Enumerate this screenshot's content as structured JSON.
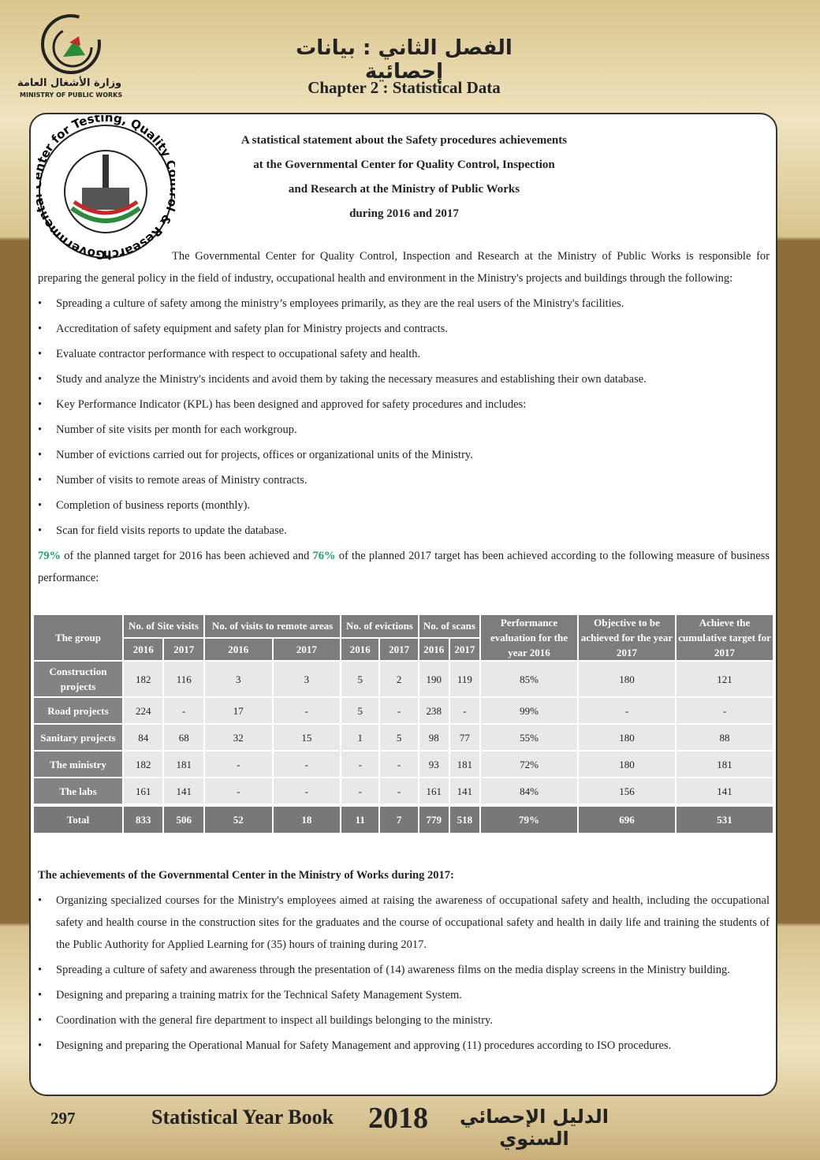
{
  "header": {
    "logo_arabic": "وزارة الأشغال العامة",
    "logo_english": "MINISTRY OF PUBLIC WORKS",
    "arabic_title": "الفصل الثاني : بيانات إحصائية",
    "chapter": "Chapter 2 : Statistical Data"
  },
  "seal": {
    "text": "Governmental Center for Testing, Quality Control & Research"
  },
  "statement": {
    "title": [
      "A statistical statement about the Safety procedures achievements",
      "at the Governmental Center for Quality Control, Inspection",
      "and Research at the Ministry of Public Works",
      "during 2016 and 2017"
    ],
    "intro": "The Governmental Center for Quality Control, Inspection and Research at the Ministry of Public Works is responsible for preparing the general policy in the field of industry, occupational health and environment in the Ministry's projects and buildings through the following:",
    "bullets": [
      "Spreading a culture of safety among the ministry’s employees primarily, as they are the real users of the Ministry's facilities.",
      "Accreditation of safety equipment and safety plan for Ministry projects and contracts.",
      "Evaluate contractor performance with respect to occupational safety and health.",
      "Study and analyze the Ministry's incidents and avoid them by taking the necessary measures and establishing their own database.",
      "Key Performance Indicator (KPL) has been designed and approved for safety procedures and includes:",
      "Number of site visits per month for each workgroup.",
      "Number of evictions carried out for projects, offices or organizational units of the Ministry.",
      "Number of visits to remote areas of Ministry contracts.",
      "Completion of business reports (monthly).",
      "Scan for field visits reports to update the database."
    ],
    "result": {
      "pct_2016": "79%",
      "text_1": "of the planned target for 2016 has been achieved and",
      "pct_2017": "76%",
      "text_2": "of the planned 2017 target has been achieved according to the following measure of business performance:"
    }
  },
  "table": {
    "header": [
      "The group",
      "No. of Site visits",
      "No. of visits to remote areas",
      "No. of evictions",
      "No. of scans",
      "Performance evaluation for the year 2016",
      "Objective to be achieved for the year 2017",
      "Achieve the cumulative target for 2017"
    ],
    "years": [
      "2016",
      "2017",
      "2016",
      "2017",
      "2016",
      "2017",
      "2016",
      "2017"
    ],
    "rows": [
      [
        "Construction projects",
        "182",
        "116",
        "3",
        "3",
        "5",
        "2",
        "190",
        "119",
        "85%",
        "180",
        "121"
      ],
      [
        "Road projects",
        "224",
        "-",
        "17",
        "-",
        "5",
        "-",
        "238",
        "-",
        "99%",
        "-",
        "-"
      ],
      [
        "Sanitary projects",
        "84",
        "68",
        "32",
        "15",
        "1",
        "5",
        "98",
        "77",
        "55%",
        "180",
        "88"
      ],
      [
        "The ministry",
        "182",
        "181",
        "-",
        "-",
        "-",
        "-",
        "93",
        "181",
        "72%",
        "180",
        "181"
      ],
      [
        "The labs",
        "161",
        "141",
        "-",
        "-",
        "-",
        "-",
        "161",
        "141",
        "84%",
        "156",
        "141"
      ]
    ],
    "total": [
      "Total",
      "833",
      "506",
      "52",
      "18",
      "11",
      "7",
      "779",
      "518",
      "79%",
      "696",
      "531"
    ]
  },
  "achievements": {
    "heading": "The achievements of the Governmental Center in the Ministry of Works during 2017:",
    "bullets": [
      "Organizing specialized courses for the Ministry's employees aimed at raising the awareness of occupational safety and health, including the occupational safety and health course in the construction sites for the graduates and the course of occupational safety and health in daily life and training the students of the Public Authority for Applied Learning for (35) hours of training during 2017.",
      "Spreading a culture of safety and awareness through the presentation of (14) awareness films on the media display screens in the Ministry building.",
      "Designing and preparing a training matrix for the Technical Safety Management System.",
      "Coordination with the general fire department to inspect all buildings belonging to the ministry.",
      "Designing and preparing the Operational Manual for Safety Management and approving (11) procedures according to ISO procedures."
    ]
  },
  "footer": {
    "page": "297",
    "book": "Statistical Year Book",
    "year": "2018",
    "arabic": "الدليل الإحصائي السنوي"
  }
}
